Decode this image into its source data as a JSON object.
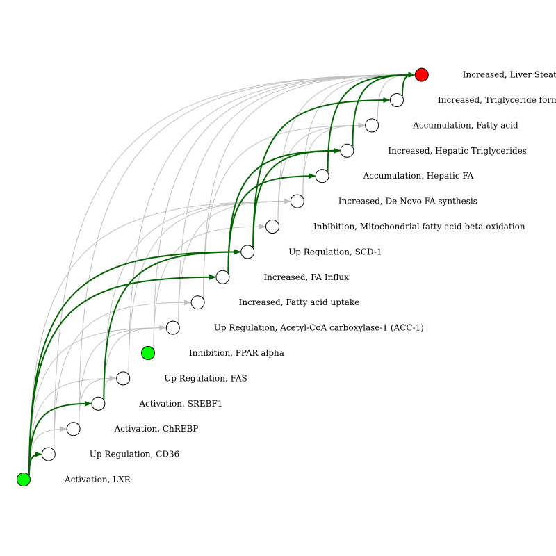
{
  "colors": {
    "highlight_edge": "#006400",
    "normal_edge": "#c0c0c0",
    "molecular_initiating_event": "#00ff00",
    "adverse_outcome": "#ff0000",
    "key_event": "#ffffff",
    "node_stroke": "#000000"
  },
  "nodes": [
    {
      "id": "n0",
      "label": "Activation, LXR",
      "type": "molecular_initiating_event"
    },
    {
      "id": "n1",
      "label": "Up Regulation, CD36",
      "type": "key_event"
    },
    {
      "id": "n2",
      "label": "Activation, ChREBP",
      "type": "key_event"
    },
    {
      "id": "n3",
      "label": "Activation, SREBF1",
      "type": "key_event"
    },
    {
      "id": "n4",
      "label": "Up Regulation, FAS",
      "type": "key_event"
    },
    {
      "id": "n5",
      "label": "Inhibition, PPAR alpha",
      "type": "molecular_initiating_event"
    },
    {
      "id": "n6",
      "label": "Up Regulation, Acetyl-CoA carboxylase-1 (ACC-1)",
      "type": "key_event"
    },
    {
      "id": "n7",
      "label": "Increased, Fatty acid uptake",
      "type": "key_event"
    },
    {
      "id": "n8",
      "label": "Increased, FA Influx",
      "type": "key_event"
    },
    {
      "id": "n9",
      "label": "Up Regulation, SCD-1",
      "type": "key_event"
    },
    {
      "id": "n10",
      "label": "Inhibition, Mitochondrial fatty acid beta-oxidation",
      "type": "key_event"
    },
    {
      "id": "n11",
      "label": "Increased, De Novo FA synthesis",
      "type": "key_event"
    },
    {
      "id": "n12",
      "label": "Accumulation, Hepatic FA",
      "type": "key_event"
    },
    {
      "id": "n13",
      "label": "Increased, Hepatic Triglycerides",
      "type": "key_event"
    },
    {
      "id": "n14",
      "label": "Accumulation, Fatty acid",
      "type": "key_event"
    },
    {
      "id": "n15",
      "label": "Increased, Triglyceride formation",
      "type": "key_event"
    },
    {
      "id": "n16",
      "label": "Increased, Liver Steatosis",
      "type": "adverse_outcome"
    }
  ],
  "edges": [
    {
      "from": 0,
      "to": 1,
      "highlighted": true
    },
    {
      "from": 0,
      "to": 2,
      "highlighted": false
    },
    {
      "from": 0,
      "to": 3,
      "highlighted": true
    },
    {
      "from": 0,
      "to": 4,
      "highlighted": false
    },
    {
      "from": 0,
      "to": 6,
      "highlighted": false
    },
    {
      "from": 0,
      "to": 8,
      "highlighted": true
    },
    {
      "from": 0,
      "to": 9,
      "highlighted": true
    },
    {
      "from": 0,
      "to": 11,
      "highlighted": false
    },
    {
      "from": 1,
      "to": 7,
      "highlighted": false
    },
    {
      "from": 2,
      "to": 4,
      "highlighted": false
    },
    {
      "from": 2,
      "to": 6,
      "highlighted": false
    },
    {
      "from": 3,
      "to": 4,
      "highlighted": false
    },
    {
      "from": 3,
      "to": 6,
      "highlighted": false
    },
    {
      "from": 3,
      "to": 9,
      "highlighted": true
    },
    {
      "from": 3,
      "to": 11,
      "highlighted": false
    },
    {
      "from": 4,
      "to": 11,
      "highlighted": false
    },
    {
      "from": 5,
      "to": 10,
      "highlighted": false
    },
    {
      "from": 6,
      "to": 11,
      "highlighted": false
    },
    {
      "from": 7,
      "to": 14,
      "highlighted": false
    },
    {
      "from": 8,
      "to": 12,
      "highlighted": true
    },
    {
      "from": 8,
      "to": 13,
      "highlighted": true
    },
    {
      "from": 9,
      "to": 13,
      "highlighted": true
    },
    {
      "from": 9,
      "to": 15,
      "highlighted": true
    },
    {
      "from": 10,
      "to": 14,
      "highlighted": false
    },
    {
      "from": 11,
      "to": 14,
      "highlighted": false
    },
    {
      "from": 11,
      "to": 16,
      "highlighted": false
    },
    {
      "from": 12,
      "to": 16,
      "highlighted": true
    },
    {
      "from": 13,
      "to": 16,
      "highlighted": true
    },
    {
      "from": 14,
      "to": 16,
      "highlighted": false
    },
    {
      "from": 15,
      "to": 16,
      "highlighted": true
    },
    {
      "from": 10,
      "to": 16,
      "highlighted": false
    },
    {
      "from": 6,
      "to": 16,
      "highlighted": false
    },
    {
      "from": 4,
      "to": 16,
      "highlighted": false
    },
    {
      "from": 2,
      "to": 16,
      "highlighted": false
    },
    {
      "from": 1,
      "to": 16,
      "highlighted": false
    },
    {
      "from": 5,
      "to": 16,
      "highlighted": false
    },
    {
      "from": 7,
      "to": 16,
      "highlighted": false
    }
  ]
}
